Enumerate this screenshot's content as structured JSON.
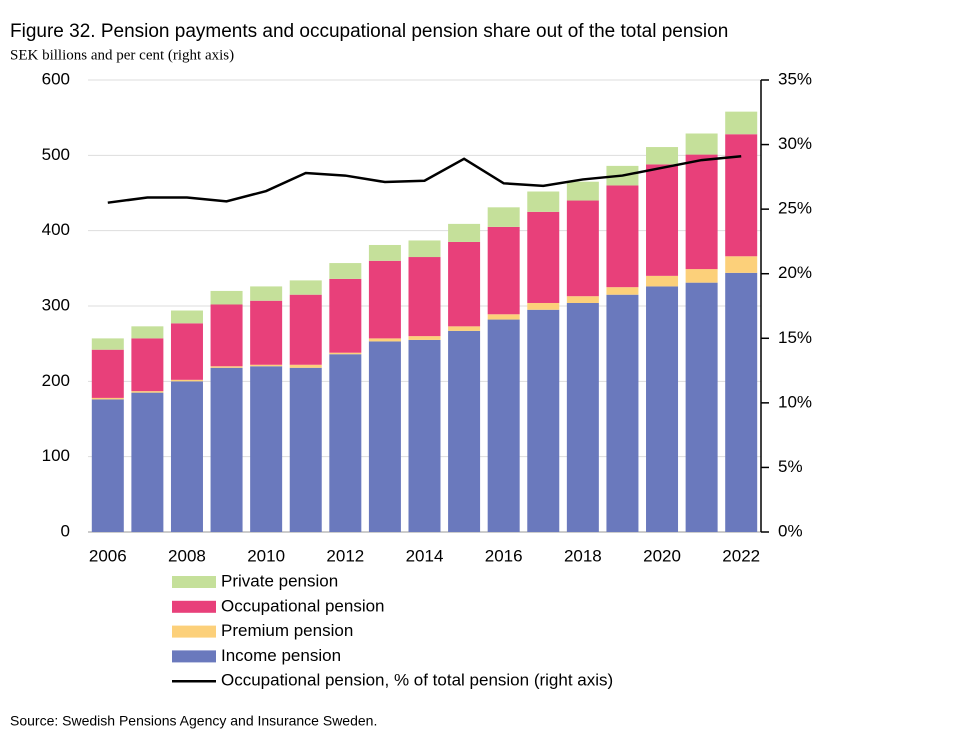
{
  "chart_data": {
    "type": "bar",
    "title": "Figure 32. Pension payments and occupational pension share out of the total pension",
    "subtitle": "SEK billions and per cent (right axis)",
    "source": "Source: Swedish Pensions Agency and Insurance Sweden.",
    "stacked": true,
    "categories": [
      "2006",
      null,
      "2008",
      null,
      "2010",
      null,
      "2012",
      null,
      "2014",
      null,
      "2016",
      null,
      "2018",
      null,
      "2020",
      null,
      "2022"
    ],
    "series": [
      {
        "name": "Income pension",
        "color": "#6a79bd",
        "values": [
          176,
          185,
          200,
          218,
          220,
          218,
          236,
          253,
          255,
          267,
          282,
          295,
          304,
          315,
          326,
          331,
          344
        ]
      },
      {
        "name": "Premium pension",
        "color": "#fcd07a",
        "values": [
          2,
          2,
          2,
          2,
          2,
          4,
          2,
          4,
          5,
          6,
          7,
          9,
          9,
          10,
          14,
          18,
          22
        ]
      },
      {
        "name": "Occupational pension",
        "color": "#e8407a",
        "values": [
          64,
          70,
          75,
          82,
          85,
          93,
          98,
          103,
          105,
          112,
          116,
          121,
          127,
          135,
          148,
          152,
          162
        ]
      },
      {
        "name": "Private pension",
        "color": "#c5e09a",
        "values": [
          15,
          16,
          17,
          18,
          19,
          19,
          21,
          21,
          22,
          24,
          26,
          27,
          25,
          26,
          23,
          28,
          30
        ]
      },
      {
        "name": "Occupational pension, % of total pension (right axis)",
        "color": "#000000",
        "type": "line",
        "axis": "y2",
        "values": [
          25.5,
          25.9,
          25.9,
          25.6,
          26.4,
          27.8,
          27.6,
          27.1,
          27.2,
          28.9,
          27.0,
          26.8,
          27.3,
          27.6,
          28.2,
          28.8,
          29.1
        ]
      }
    ],
    "ylim": [
      0,
      600
    ],
    "yticks": [
      0,
      100,
      200,
      300,
      400,
      500,
      600
    ],
    "y2lim": [
      0,
      35
    ],
    "y2ticks": [
      {
        "value": 0,
        "label": "0%"
      },
      {
        "value": 5,
        "label": "5%"
      },
      {
        "value": 10,
        "label": "10%"
      },
      {
        "value": 15,
        "label": "15%"
      },
      {
        "value": 20,
        "label": "20%"
      },
      {
        "value": 25,
        "label": "25%"
      },
      {
        "value": 30,
        "label": "30%"
      },
      {
        "value": 35,
        "label": "35%"
      }
    ],
    "grid": true
  }
}
